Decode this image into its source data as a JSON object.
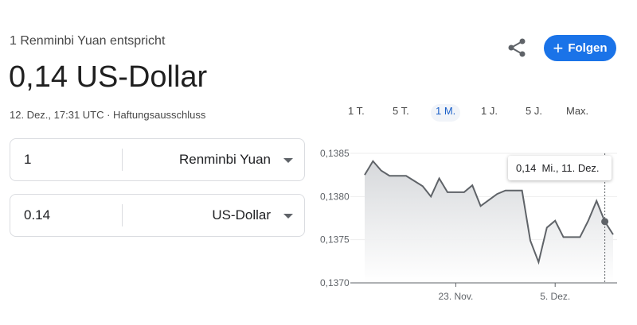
{
  "header": {
    "subtitle": "1 Renminbi Yuan entspricht",
    "value": "0,14 US-Dollar",
    "meta": "12. Dez., 17:31 UTC · Haftungsausschluss"
  },
  "actions": {
    "share_icon": "share-icon",
    "follow_label": "Folgen",
    "follow_icon": "plus-icon",
    "accent": "#1a73e8"
  },
  "converter": [
    {
      "amount": "1",
      "currency": "Renminbi Yuan"
    },
    {
      "amount": "0.14",
      "currency": "US-Dollar"
    }
  ],
  "range_tabs": [
    {
      "label": "1 T."
    },
    {
      "label": "5 T."
    },
    {
      "label": "1 M.",
      "active": true
    },
    {
      "label": "1 J."
    },
    {
      "label": "5 J."
    },
    {
      "label": "Max."
    }
  ],
  "tooltip": {
    "value": "0,14",
    "date": "Mi., 11. Dez."
  },
  "chart_data": {
    "type": "area",
    "x_start": "2024-11-12",
    "ylim": [
      0.137,
      0.1385
    ],
    "y_ticks": [
      "0,1385",
      "0,1380",
      "0,1375",
      "0,1370"
    ],
    "x_ticks": [
      {
        "label": "23. Nov.",
        "day": 11
      },
      {
        "label": "5. Dez.",
        "day": 23
      }
    ],
    "points": [
      [
        0,
        0.13825
      ],
      [
        1,
        0.13841
      ],
      [
        2,
        0.1383
      ],
      [
        3,
        0.13824
      ],
      [
        5,
        0.13824
      ],
      [
        6,
        0.13818
      ],
      [
        7,
        0.13812
      ],
      [
        8,
        0.138
      ],
      [
        9,
        0.13821
      ],
      [
        10,
        0.13805
      ],
      [
        12,
        0.13805
      ],
      [
        13,
        0.13813
      ],
      [
        14,
        0.13789
      ],
      [
        15,
        0.13796
      ],
      [
        16,
        0.13803
      ],
      [
        17,
        0.13807
      ],
      [
        19,
        0.13807
      ],
      [
        20,
        0.13749
      ],
      [
        21,
        0.13724
      ],
      [
        22,
        0.13764
      ],
      [
        23,
        0.13772
      ],
      [
        24,
        0.13753
      ],
      [
        26,
        0.13753
      ],
      [
        27,
        0.13772
      ],
      [
        28,
        0.13795
      ],
      [
        29,
        0.13771
      ],
      [
        30,
        0.13756
      ]
    ],
    "hover_day": 29,
    "grid": true,
    "line_color": "#5f6368"
  }
}
